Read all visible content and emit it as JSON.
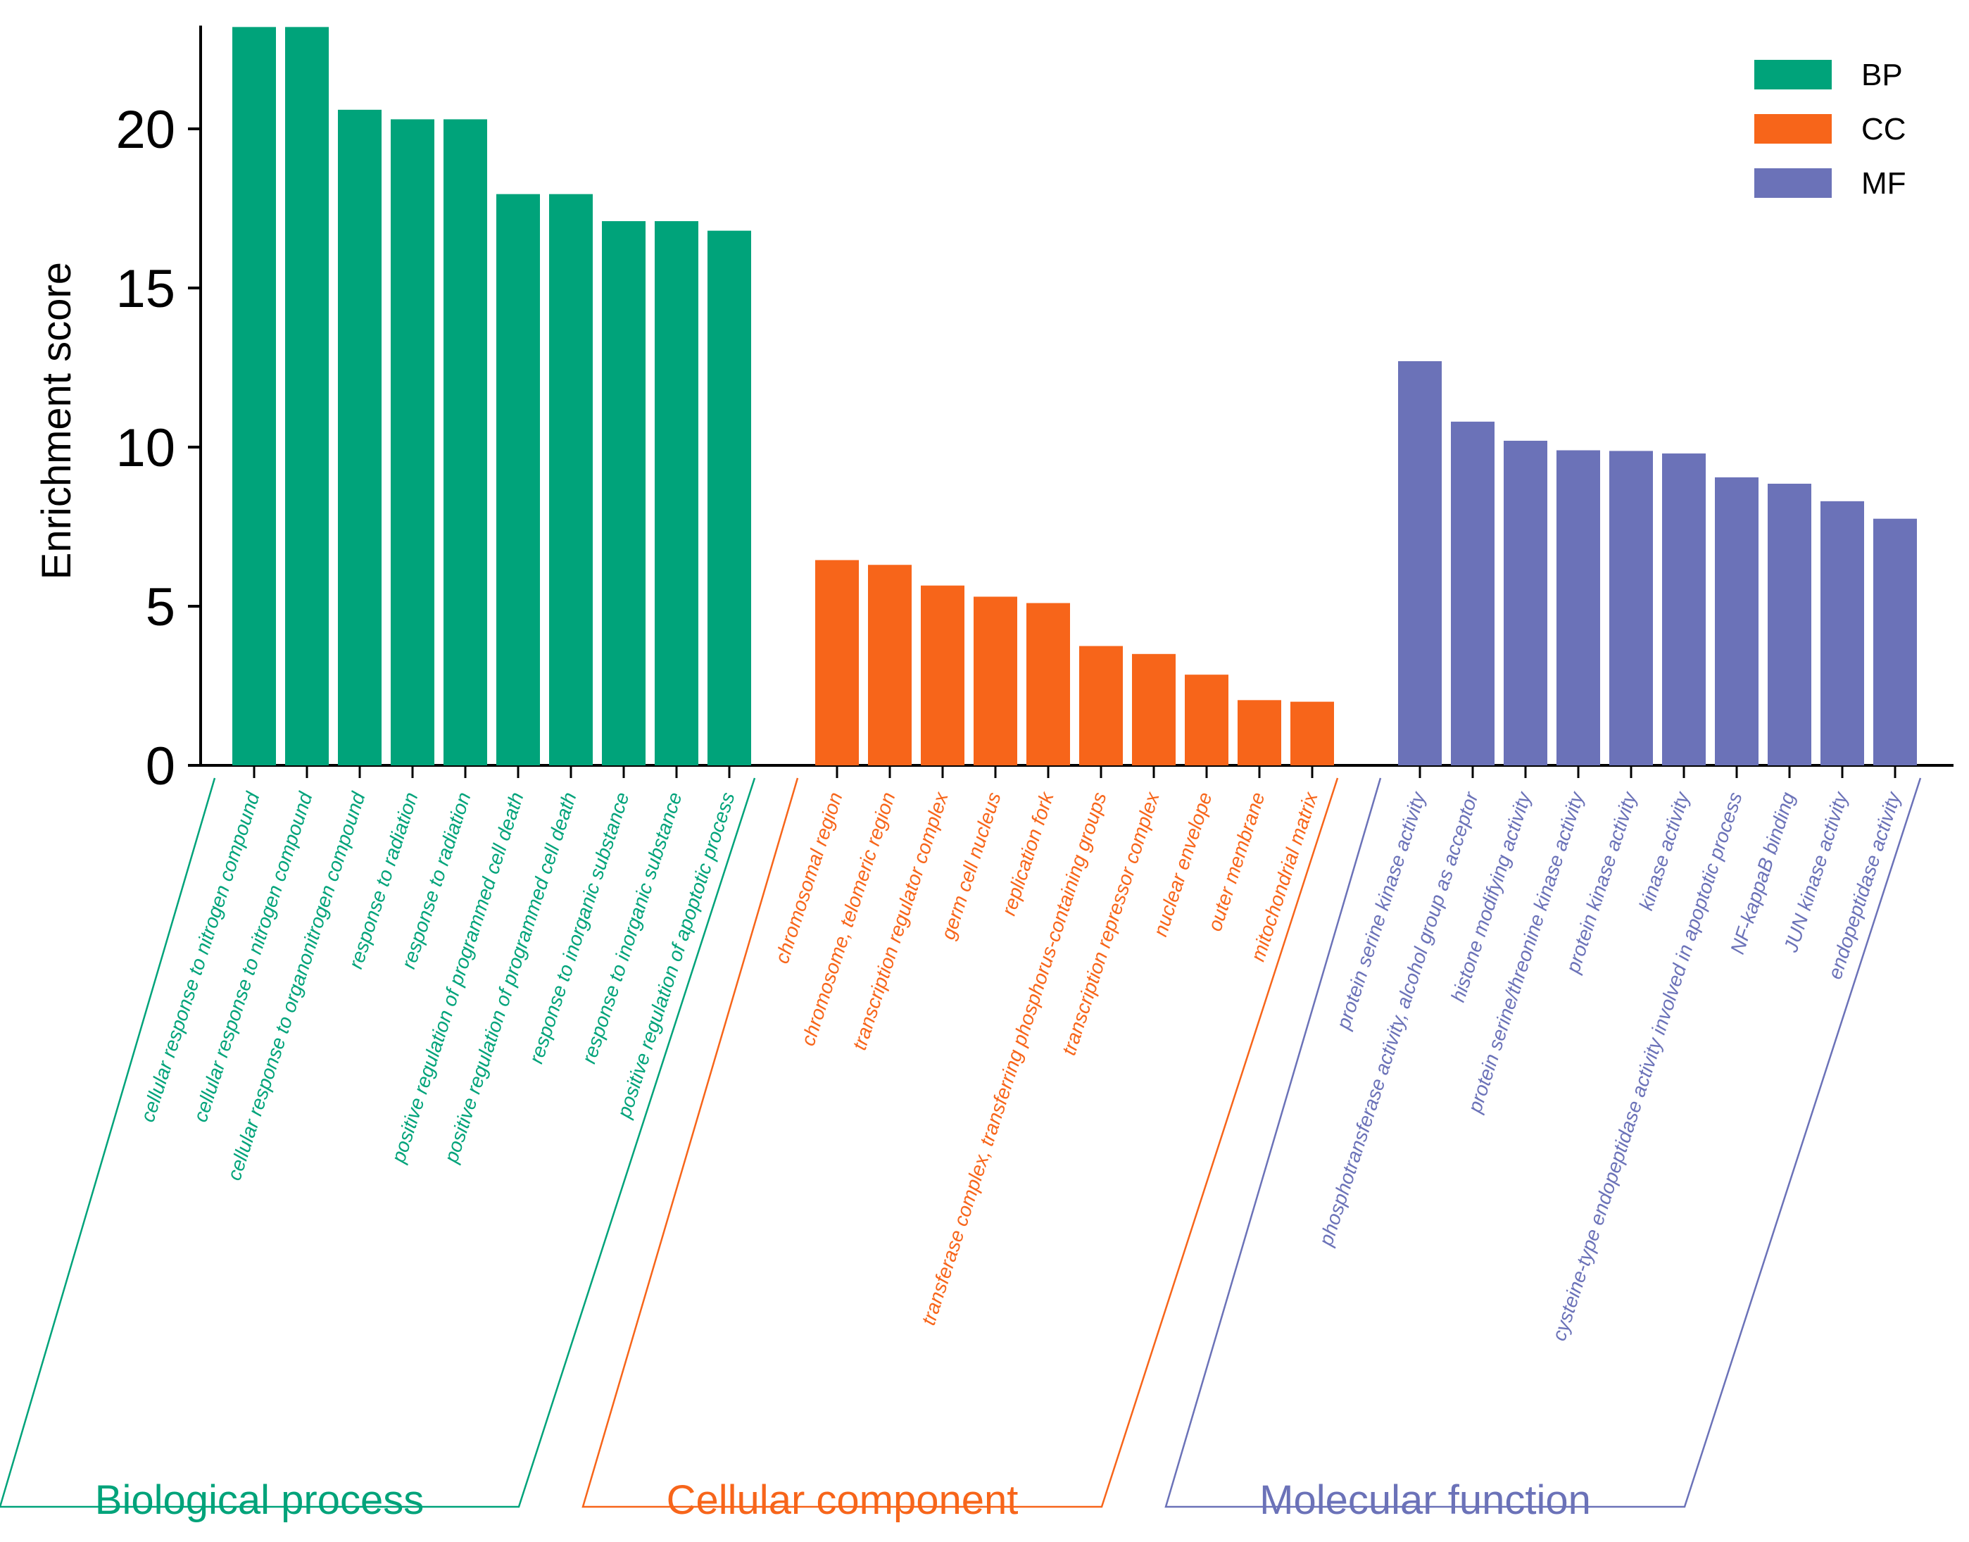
{
  "chart_data": {
    "type": "bar",
    "title": "",
    "xlabel": "",
    "ylabel": "Enrichment score",
    "ylim": [
      0,
      23.2
    ],
    "yticks": [
      0,
      5,
      10,
      15,
      20
    ],
    "grid": false,
    "legend_position": "top-right",
    "legend": [
      {
        "key": "BP",
        "label": "BP",
        "color": "#00A37A"
      },
      {
        "key": "CC",
        "label": "CC",
        "color": "#F7651A"
      },
      {
        "key": "MF",
        "label": "MF",
        "color": "#6B72B8"
      }
    ],
    "groups": [
      {
        "key": "BP",
        "title": "Biological process",
        "color": "#00A37A",
        "categories": [
          "cellular response to nitrogen compound",
          "cellular response to nitrogen compound",
          "cellular response to organonitrogen compound",
          "response to radiation",
          "response to radiation",
          "positive regulation of programmed cell death",
          "positive regulation of programmed cell death",
          "response to inorganic substance",
          "response to inorganic substance",
          "positive regulation of apoptotic process"
        ],
        "values": [
          23.2,
          23.2,
          20.6,
          20.3,
          20.3,
          17.95,
          17.95,
          17.1,
          17.1,
          16.8
        ]
      },
      {
        "key": "CC",
        "title": "Cellular component",
        "color": "#F7651A",
        "categories": [
          "chromosomal region",
          "chromosome, telomeric region",
          "transcription regulator complex",
          "germ cell nucleus",
          "replication fork",
          "transferase complex, transferring phosphorus-containing groups",
          "transcription repressor complex",
          "nuclear envelope",
          "outer membrane",
          "mitochondrial matrix"
        ],
        "values": [
          6.45,
          6.3,
          5.65,
          5.3,
          5.1,
          3.75,
          3.5,
          2.85,
          2.05,
          2.0
        ]
      },
      {
        "key": "MF",
        "title": "Molecular function",
        "color": "#6B72B8",
        "categories": [
          "protein serine kinase activity",
          "phosphotransferase activity, alcohol group as acceptor",
          "histone modifying activity",
          "protein serine/threonine kinase activity",
          "protein kinase activity",
          "kinase activity",
          "cysteine-type endopeptidase activity involved in apoptotic process",
          "NF-kappaB binding",
          "JUN kinase activity",
          "endopeptidase activity"
        ],
        "values": [
          12.7,
          10.8,
          10.2,
          9.9,
          9.88,
          9.8,
          9.05,
          8.85,
          8.3,
          7.75
        ]
      }
    ]
  }
}
